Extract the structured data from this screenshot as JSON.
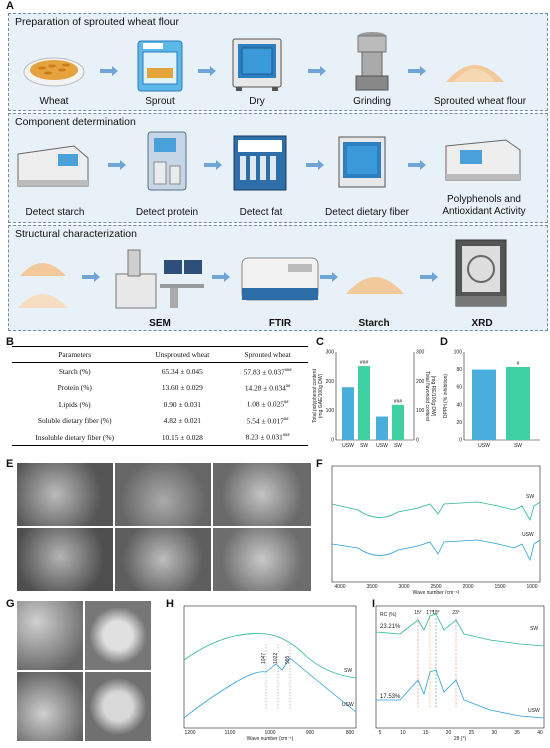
{
  "panel_labels": {
    "A": "A",
    "B": "B",
    "C": "C",
    "D": "D",
    "E": "E",
    "F": "F",
    "G": "G",
    "H": "H",
    "I": "I"
  },
  "section1": {
    "title": "Preparation of sprouted wheat flour",
    "steps": [
      "Wheat",
      "Sprout",
      "Dry",
      "Grinding",
      "Sprouted wheat flour"
    ]
  },
  "section2": {
    "title": "Component determination",
    "steps": [
      "Detect starch",
      "Detect protein",
      "Detect fat",
      "Detect dietary fiber",
      "Polyphenols and\nAntioxidant Activity"
    ]
  },
  "section3": {
    "title": "Structural characterization",
    "steps": [
      "",
      "SEM",
      "FTIR",
      "Starch",
      "XRD"
    ]
  },
  "table": {
    "headers": [
      "Parameters",
      "Unsprouted wheat",
      "Sprouted wheat"
    ],
    "rows": [
      {
        "param": "Starch (%)",
        "usw": "65.34 ± 0.045",
        "sw": "57.83 ± 0.037",
        "sig": "###"
      },
      {
        "param": "Protein (%)",
        "usw": "13.60 ± 0.029",
        "sw": "14.28 ± 0.034",
        "sig": "##"
      },
      {
        "param": "Lipids (%)",
        "usw": "0.90 ± 0.031",
        "sw": "1.08 ± 0.025",
        "sig": "##"
      },
      {
        "param": "Soluble dietary fiber (%)",
        "usw": "4.82 ± 0.021",
        "sw": "5.54 ± 0.017",
        "sig": "##"
      },
      {
        "param": "Insoluble dietary fiber (%)",
        "usw": "10.15 ± 0.028",
        "sw": "8.23 ± 0.031",
        "sig": "###"
      }
    ]
  },
  "chart_data": [
    {
      "id": "C",
      "type": "bar",
      "ylabel_left": "Total polyphenol content\n(mg GAE/100g DW)",
      "ylabel_right": "Total flavonoid content\n(mg RE/100g DW)",
      "ylim": [
        0,
        300
      ],
      "yticks": [
        "0",
        "100",
        "200",
        "300"
      ],
      "groups": [
        {
          "categories": [
            "USW",
            "SW"
          ],
          "values": [
            180,
            252
          ],
          "sig": [
            "",
            "###"
          ]
        },
        {
          "categories": [
            "USW",
            "SW"
          ],
          "values": [
            80,
            120
          ],
          "sig": [
            "",
            "###"
          ]
        }
      ],
      "colors": [
        "#4aaedc",
        "#3ecfa2"
      ]
    },
    {
      "id": "D",
      "type": "bar",
      "ylabel": "DPPH (% inhibition)",
      "ylim": [
        0,
        100
      ],
      "yticks": [
        "0",
        "20",
        "40",
        "60",
        "80",
        "100"
      ],
      "categories": [
        "USW",
        "SW"
      ],
      "values": [
        80,
        83
      ],
      "sig": [
        "",
        "#"
      ],
      "colors": [
        "#4aaedc",
        "#3ecfa2"
      ]
    },
    {
      "id": "F",
      "type": "line",
      "xlabel": "Wave number (cm⁻¹)",
      "xticks": [
        "4000",
        "3500",
        "3000",
        "2500",
        "2000",
        "1500",
        "1000"
      ],
      "series": [
        {
          "name": "SW"
        },
        {
          "name": "USW"
        }
      ]
    },
    {
      "id": "H",
      "type": "line",
      "xlabel": "Wave number (cm⁻¹)",
      "xticks": [
        "1200",
        "1100",
        "1000",
        "900",
        "800"
      ],
      "peaks": [
        "1047",
        "1022",
        "995"
      ],
      "series": [
        {
          "name": "SW"
        },
        {
          "name": "USW"
        }
      ]
    },
    {
      "id": "I",
      "type": "line",
      "xlabel": "2θ (°)",
      "xticks": [
        "5",
        "10",
        "15",
        "20",
        "25",
        "30",
        "35",
        "40"
      ],
      "rc_label": "RC (%)",
      "peaks": [
        "15°",
        "17°",
        "18°",
        "23°"
      ],
      "series": [
        {
          "name": "SW",
          "rc": "23.21%"
        },
        {
          "name": "USW",
          "rc": "17.53%"
        }
      ]
    }
  ],
  "colors": {
    "sw": "#2bb59a",
    "usw": "#2a9fd6",
    "section_bg": "#e9f1f8"
  }
}
